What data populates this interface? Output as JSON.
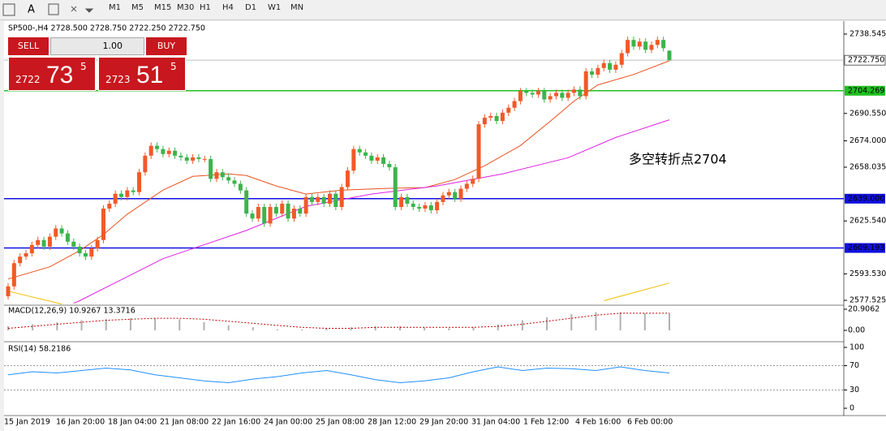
{
  "toolbar": {
    "timeframes": [
      "M1",
      "M5",
      "M15",
      "M30",
      "H1",
      "H4",
      "D1",
      "W1",
      "MN"
    ]
  },
  "header": {
    "text": "SP500-,H4  2728.500 2728.750 2722.250 2722.750"
  },
  "trade_panel": {
    "sell": "SELL",
    "buy": "BUY",
    "lots": "1.00",
    "bid": {
      "big": "2722",
      "digits": "73",
      "small": "5"
    },
    "ask": {
      "big": "2723",
      "digits": "51",
      "small": "5"
    }
  },
  "chart": {
    "type": "candlestick",
    "ylim": [
      2574.6,
      2745.4
    ],
    "yticks": [
      2738.545,
      {
        "value": 2690.55,
        "label": "2690.550"
      },
      {
        "value": 2674,
        "label": "2674.000"
      },
      2658.035,
      {
        "value": 2625.54,
        "label": "2625.540"
      },
      {
        "value": 2593.53,
        "label": "2593.530"
      },
      2577.525
    ],
    "open": [
      2580,
      2586,
      2600,
      2604,
      2606,
      2611,
      2614,
      2610,
      2616,
      2621,
      2618,
      2613,
      2610,
      2606,
      2604,
      2609,
      2614,
      2633,
      2636,
      2642,
      2640,
      2644,
      2643,
      2655,
      2665,
      2671,
      2669,
      2666,
      2668,
      2665,
      2664,
      2662,
      2664,
      2663,
      2663,
      2651,
      2655,
      2652,
      2650,
      2648,
      2644,
      2630,
      2627,
      2634,
      2624,
      2634,
      2630,
      2636,
      2627,
      2633,
      2630,
      2640,
      2637,
      2640,
      2636,
      2642,
      2634,
      2646,
      2656,
      2669,
      2667,
      2665,
      2662,
      2664,
      2660,
      2658,
      2634,
      2640,
      2636,
      2634,
      2633,
      2635,
      2632,
      2637,
      2641,
      2643,
      2639,
      2645,
      2648,
      2651,
      2684,
      2688,
      2689,
      2686,
      2691,
      2694,
      2698,
      2704,
      2703,
      2702,
      2704,
      2699,
      2701,
      2703,
      2700,
      2703,
      2705,
      2701,
      2716,
      2714,
      2718,
      2721,
      2717,
      2720,
      2727,
      2735,
      2731,
      2734,
      2729,
      2732,
      2735,
      2728.5
    ],
    "high": [
      2588,
      2602,
      2606,
      2608,
      2613,
      2616,
      2616,
      2618,
      2623,
      2623,
      2620,
      2615,
      2612,
      2608,
      2611,
      2616,
      2635,
      2638,
      2644,
      2644,
      2646,
      2646,
      2657,
      2667,
      2673,
      2673,
      2671,
      2670,
      2670,
      2667,
      2666,
      2666,
      2666,
      2665,
      2665,
      2657,
      2657,
      2654,
      2652,
      2650,
      2646,
      2632,
      2636,
      2636,
      2636,
      2636,
      2638,
      2638,
      2635,
      2635,
      2642,
      2642,
      2642,
      2642,
      2644,
      2644,
      2648,
      2658,
      2671,
      2671,
      2669,
      2667,
      2666,
      2666,
      2662,
      2660,
      2642,
      2642,
      2638,
      2636,
      2637,
      2637,
      2639,
      2643,
      2645,
      2645,
      2647,
      2650,
      2653,
      2686,
      2690,
      2691,
      2691,
      2693,
      2696,
      2700,
      2706,
      2706,
      2705,
      2706,
      2706,
      2703,
      2705,
      2705,
      2705,
      2707,
      2707,
      2718,
      2718,
      2720,
      2723,
      2723,
      2722,
      2729,
      2737,
      2737,
      2736,
      2736,
      2734,
      2737,
      2737,
      2728.75
    ],
    "low": [
      2578,
      2584,
      2598,
      2602,
      2604,
      2609,
      2608,
      2608,
      2614,
      2616,
      2611,
      2608,
      2604,
      2602,
      2602,
      2607,
      2612,
      2631,
      2634,
      2638,
      2638,
      2641,
      2641,
      2653,
      2663,
      2667,
      2664,
      2664,
      2663,
      2662,
      2660,
      2660,
      2661,
      2661,
      2649,
      2649,
      2650,
      2648,
      2646,
      2642,
      2628,
      2625,
      2625,
      2622,
      2622,
      2628,
      2628,
      2625,
      2625,
      2628,
      2628,
      2635,
      2635,
      2634,
      2634,
      2632,
      2632,
      2644,
      2654,
      2665,
      2663,
      2660,
      2660,
      2658,
      2656,
      2632,
      2632,
      2634,
      2632,
      2631,
      2631,
      2630,
      2630,
      2635,
      2639,
      2637,
      2637,
      2643,
      2646,
      2649,
      2682,
      2686,
      2684,
      2684,
      2689,
      2692,
      2696,
      2701,
      2700,
      2700,
      2697,
      2697,
      2699,
      2698,
      2698,
      2701,
      2699,
      2699,
      2712,
      2712,
      2716,
      2715,
      2715,
      2718,
      2725,
      2729,
      2729,
      2727,
      2727,
      2730,
      2728,
      2722.25
    ],
    "close": [
      2586,
      2600,
      2604,
      2606,
      2611,
      2614,
      2610,
      2616,
      2621,
      2618,
      2613,
      2610,
      2606,
      2604,
      2609,
      2614,
      2633,
      2636,
      2642,
      2640,
      2644,
      2643,
      2655,
      2665,
      2671,
      2669,
      2666,
      2668,
      2665,
      2664,
      2662,
      2664,
      2663,
      2663,
      2651,
      2655,
      2652,
      2650,
      2648,
      2644,
      2630,
      2627,
      2634,
      2624,
      2634,
      2630,
      2636,
      2627,
      2633,
      2630,
      2640,
      2637,
      2640,
      2636,
      2642,
      2634,
      2646,
      2656,
      2669,
      2667,
      2665,
      2662,
      2664,
      2660,
      2658,
      2634,
      2640,
      2636,
      2634,
      2633,
      2635,
      2632,
      2637,
      2641,
      2643,
      2639,
      2645,
      2648,
      2651,
      2684,
      2688,
      2689,
      2686,
      2691,
      2694,
      2698,
      2704,
      2703,
      2702,
      2704,
      2699,
      2701,
      2703,
      2700,
      2703,
      2705,
      2701,
      2716,
      2714,
      2718,
      2721,
      2717,
      2720,
      2727,
      2735,
      2731,
      2734,
      2729,
      2732,
      2735,
      2730,
      2722.75
    ],
    "up_color": "#f05a28",
    "down_color": "#3cb44b",
    "ma_fast": {
      "color": "#e8521c",
      "index": [
        0,
        7,
        12,
        16,
        20,
        26,
        31,
        37,
        40,
        45,
        50,
        56,
        63,
        70,
        75,
        80,
        86,
        91,
        95,
        99,
        105,
        111
      ],
      "values": [
        2590.4,
        2597.8,
        2607.6,
        2617.3,
        2629.6,
        2644.2,
        2652.5,
        2654,
        2653,
        2646.7,
        2641.8,
        2644.2,
        2645.2,
        2645.7,
        2650.6,
        2658.9,
        2671.1,
        2685.8,
        2698,
        2707.8,
        2714.1,
        2722.4
      ]
    },
    "ma_mid": {
      "color": "#e020e0",
      "index": [
        11,
        12,
        26,
        40,
        50,
        61,
        72,
        83,
        94,
        102,
        111
      ],
      "values": [
        2575.8,
        2577.3,
        2602.7,
        2619.8,
        2634.4,
        2641.8,
        2646.7,
        2654,
        2663.8,
        2676,
        2686.7
      ]
    },
    "ma_slow": {
      "color": "#f0c000",
      "index": [
        0,
        9,
        null,
        100,
        111
      ],
      "values": [
        2583.1,
        2575.3,
        null,
        2577.3,
        2588
      ]
    },
    "hlines": [
      {
        "value": 2704.269,
        "color": "#20c020",
        "text_color": "#000"
      },
      {
        "value": {
          "value": 2639,
          "label": "2639.000"
        },
        "color": "#1010e0",
        "text_color": "#fff"
      },
      {
        "value": 2609.193,
        "color": "#1010e0",
        "text_color": "#fff"
      }
    ],
    "current_price": {
      "value": 2722.75,
      "label": "2722.750"
    },
    "annotation": "多空转折点2704",
    "xlabels": [
      "15 Jan 2019",
      "16 Jan 20:00",
      "18 Jan 04:00",
      "21 Jan 08:00",
      "22 Jan 16:00",
      "24 Jan 00:00",
      "25 Jan 08:00",
      "28 Jan 12:00",
      "29 Jan 20:00",
      "31 Jan 04:00",
      "1 Feb 12:00",
      "4 Feb 16:00",
      "6 Feb 00:00"
    ]
  },
  "macd": {
    "label": "MACD(12,26,9) 10.9267 13.3716",
    "ylim": [
      -8.0537,
      20.9062
    ],
    "yticks": [
      20.9062,
      {
        "value": 0,
        "label": "0.00"
      }
    ],
    "histogram": [
      4,
      6,
      8,
      10,
      11,
      12,
      12,
      11,
      8,
      5,
      3,
      1,
      1,
      2,
      3,
      4,
      4,
      3,
      2,
      3,
      6,
      10,
      13,
      16,
      18,
      18,
      17,
      17
    ],
    "signal": [
      2,
      4,
      6,
      8,
      10,
      11,
      12,
      12,
      11,
      9,
      7,
      5,
      3,
      2,
      2,
      3,
      3,
      3,
      3,
      3,
      4,
      6,
      9,
      12,
      15,
      17,
      17,
      17
    ]
  },
  "rsi": {
    "label": "RSI(14) 58.2186",
    "ylim": [
      0,
      100
    ],
    "yticks": [
      100,
      70,
      30,
      0
    ],
    "values": [
      55,
      60,
      58,
      62,
      66,
      63,
      55,
      50,
      45,
      42,
      48,
      52,
      58,
      62,
      55,
      47,
      42,
      45,
      50,
      60,
      68,
      62,
      66,
      65,
      62,
      68,
      62,
      58
    ]
  }
}
